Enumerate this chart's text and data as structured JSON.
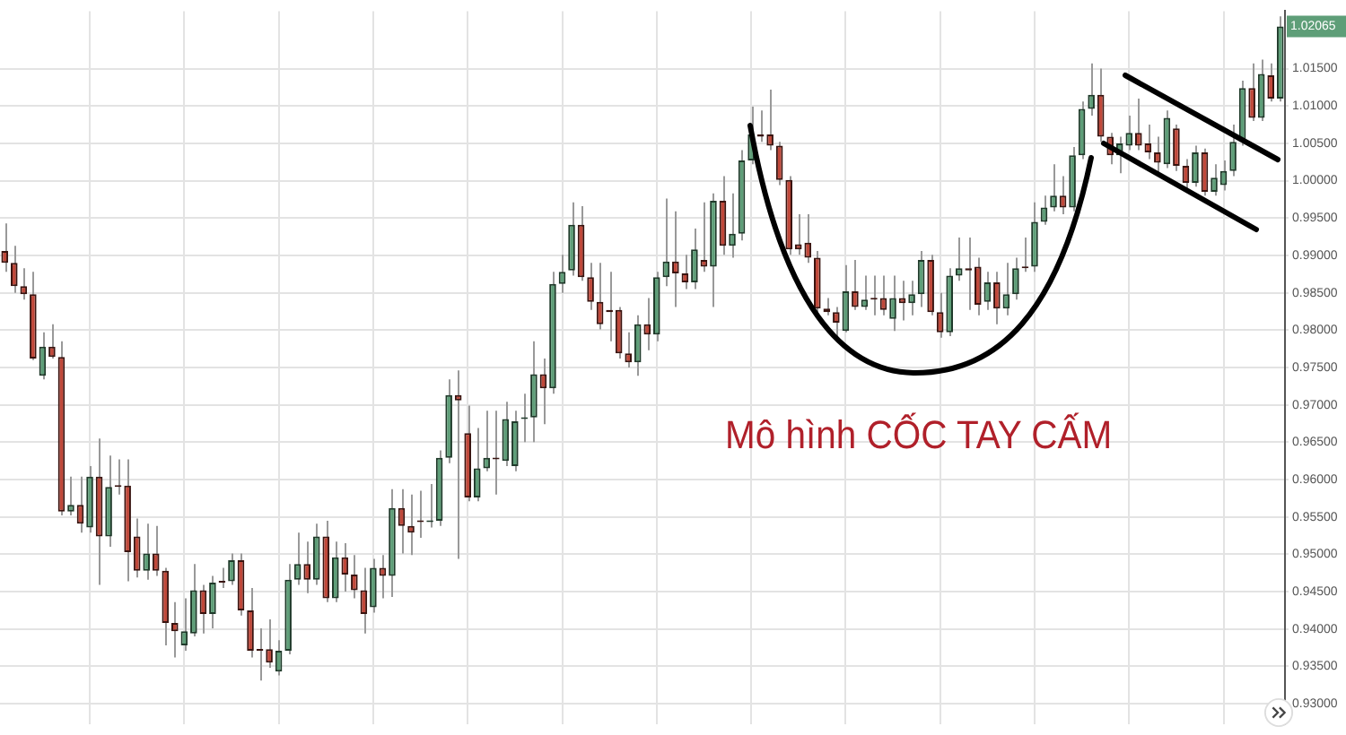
{
  "chart_data": {
    "type": "candlestick",
    "categories": [
      null,
      null,
      null,
      null,
      null,
      null,
      null,
      null,
      null,
      null,
      null,
      null,
      null,
      null,
      null,
      null,
      null,
      null,
      null,
      null,
      null,
      null,
      null,
      null,
      null,
      null,
      null,
      null,
      null,
      null,
      null,
      null,
      null,
      null,
      null,
      null,
      null,
      null,
      null,
      null,
      null,
      null,
      null,
      null,
      null,
      null,
      null,
      null,
      null,
      null,
      null,
      null,
      null,
      null,
      null,
      null,
      null,
      null,
      null,
      null,
      null,
      null,
      null,
      null,
      null,
      null,
      null,
      null,
      null,
      null,
      null,
      null,
      null,
      null,
      null,
      null,
      null,
      null,
      null,
      null,
      null,
      null,
      null,
      null,
      null,
      null,
      null,
      null,
      null,
      null,
      null,
      null,
      null,
      null,
      null,
      null,
      null,
      null,
      null,
      null,
      null,
      null,
      null,
      null,
      null,
      null,
      null,
      null,
      null,
      null,
      null,
      null,
      null,
      null,
      null,
      null,
      null,
      null,
      null,
      null,
      null,
      null,
      null,
      null,
      null,
      null,
      null,
      null,
      null,
      null,
      null,
      null,
      null,
      null,
      null,
      null
    ],
    "ohlc": [
      [
        0.9906,
        0.9943,
        0.9878,
        0.989
      ],
      [
        0.989,
        0.9913,
        0.985,
        0.9859
      ],
      [
        0.9859,
        0.9883,
        0.9841,
        0.9848
      ],
      [
        0.9848,
        0.9878,
        0.976,
        0.9762
      ],
      [
        0.9739,
        0.9797,
        0.9734,
        0.9778
      ],
      [
        0.9778,
        0.9808,
        0.9762,
        0.9764
      ],
      [
        0.9764,
        0.9785,
        0.9552,
        0.9557
      ],
      [
        0.9557,
        0.9604,
        0.9552,
        0.9566
      ],
      [
        0.9566,
        0.9604,
        0.9529,
        0.9541
      ],
      [
        0.9536,
        0.9618,
        0.9529,
        0.9604
      ],
      [
        0.9604,
        0.9655,
        0.9459,
        0.9524
      ],
      [
        0.9524,
        0.9632,
        0.951,
        0.959
      ],
      [
        0.9592,
        0.9627,
        0.958,
        0.959
      ],
      [
        0.9592,
        0.9627,
        0.9464,
        0.9503
      ],
      [
        0.9524,
        0.9548,
        0.9469,
        0.9478
      ],
      [
        0.9478,
        0.9541,
        0.9466,
        0.9501
      ],
      [
        0.9501,
        0.9538,
        0.9471,
        0.9478
      ],
      [
        0.9478,
        0.9482,
        0.9378,
        0.9408
      ],
      [
        0.9408,
        0.9436,
        0.9362,
        0.9397
      ],
      [
        0.9378,
        0.9441,
        0.9371,
        0.9397
      ],
      [
        0.9394,
        0.9487,
        0.939,
        0.9452
      ],
      [
        0.9452,
        0.9459,
        0.9394,
        0.942
      ],
      [
        0.942,
        0.9471,
        0.9401,
        0.9462
      ],
      [
        0.9464,
        0.9482,
        0.9455,
        0.9462
      ],
      [
        0.9464,
        0.9501,
        0.9459,
        0.9492
      ],
      [
        0.9492,
        0.9501,
        0.9418,
        0.9425
      ],
      [
        0.9425,
        0.9455,
        0.9362,
        0.9371
      ],
      [
        0.9373,
        0.9401,
        0.9331,
        0.9371
      ],
      [
        0.9373,
        0.9413,
        0.9348,
        0.9355
      ],
      [
        0.9343,
        0.9385,
        0.9338,
        0.9371
      ],
      [
        0.9371,
        0.9487,
        0.9366,
        0.9466
      ],
      [
        0.9466,
        0.9529,
        0.9459,
        0.9487
      ],
      [
        0.9487,
        0.9517,
        0.9448,
        0.9466
      ],
      [
        0.9466,
        0.9541,
        0.9459,
        0.9524
      ],
      [
        0.9524,
        0.9545,
        0.9436,
        0.9441
      ],
      [
        0.9441,
        0.9517,
        0.9436,
        0.9496
      ],
      [
        0.9496,
        0.9515,
        0.945,
        0.9473
      ],
      [
        0.9473,
        0.9499,
        0.9441,
        0.9452
      ],
      [
        0.9452,
        0.9482,
        0.9394,
        0.942
      ],
      [
        0.9429,
        0.9494,
        0.9422,
        0.9482
      ],
      [
        0.9482,
        0.9499,
        0.9441,
        0.9471
      ],
      [
        0.9471,
        0.9587,
        0.9443,
        0.9562
      ],
      [
        0.9562,
        0.9587,
        0.9501,
        0.9538
      ],
      [
        0.9538,
        0.958,
        0.9499,
        0.9529
      ],
      [
        0.9545,
        0.9585,
        0.9522,
        0.9543
      ],
      [
        0.9543,
        0.9594,
        0.9536,
        0.9545
      ],
      [
        0.9545,
        0.9639,
        0.9538,
        0.9629
      ],
      [
        0.9629,
        0.9734,
        0.9622,
        0.9713
      ],
      [
        0.9713,
        0.9746,
        0.9494,
        0.9706
      ],
      [
        0.9662,
        0.9699,
        0.9571,
        0.9576
      ],
      [
        0.9576,
        0.9669,
        0.9571,
        0.9615
      ],
      [
        0.9615,
        0.9692,
        0.9611,
        0.9629
      ],
      [
        0.9629,
        0.9692,
        0.958,
        0.9627
      ],
      [
        0.9625,
        0.9704,
        0.9618,
        0.9681
      ],
      [
        0.9618,
        0.9692,
        0.9611,
        0.9678
      ],
      [
        0.9681,
        0.9715,
        0.965,
        0.9683
      ],
      [
        0.9683,
        0.9785,
        0.965,
        0.9741
      ],
      [
        0.9741,
        0.9762,
        0.9674,
        0.9722
      ],
      [
        0.9722,
        0.9878,
        0.9715,
        0.9862
      ],
      [
        0.9862,
        0.9901,
        0.985,
        0.9878
      ],
      [
        0.988,
        0.9971,
        0.9873,
        0.9941
      ],
      [
        0.9941,
        0.9966,
        0.9866,
        0.9871
      ],
      [
        0.9871,
        0.989,
        0.9827,
        0.9838
      ],
      [
        0.9838,
        0.989,
        0.9801,
        0.9808
      ],
      [
        0.9827,
        0.9878,
        0.9785,
        0.9824
      ],
      [
        0.9827,
        0.9831,
        0.9762,
        0.9769
      ],
      [
        0.9769,
        0.9797,
        0.975,
        0.9757
      ],
      [
        0.9757,
        0.982,
        0.9739,
        0.9808
      ],
      [
        0.9808,
        0.9843,
        0.9773,
        0.9794
      ],
      [
        0.9794,
        0.9878,
        0.9785,
        0.9871
      ],
      [
        0.9871,
        0.9976,
        0.9859,
        0.9892
      ],
      [
        0.9892,
        0.9959,
        0.9831,
        0.9876
      ],
      [
        0.9876,
        0.9901,
        0.9855,
        0.9864
      ],
      [
        0.9864,
        0.9936,
        0.9855,
        0.9908
      ],
      [
        0.9894,
        0.9971,
        0.9878,
        0.9885
      ],
      [
        0.9885,
        0.9983,
        0.9831,
        0.9973
      ],
      [
        0.9973,
        1.0006,
        0.9901,
        0.9913
      ],
      [
        0.9913,
        0.9983,
        0.9897,
        0.9929
      ],
      [
        0.9929,
        1.0041,
        0.992,
        1.0027
      ],
      [
        1.0027,
        1.0099,
        1.0022,
        1.0062
      ],
      [
        1.0062,
        1.0094,
        1.0052,
        1.0059
      ],
      [
        1.0062,
        1.0122,
        1.0041,
        1.0047
      ],
      [
        1.0047,
        1.0052,
        0.9994,
        1.0001
      ],
      [
        1.0001,
        1.0006,
        0.9901,
        0.9908
      ],
      [
        0.9915,
        0.9955,
        0.9901,
        0.9908
      ],
      [
        0.9917,
        0.9955,
        0.989,
        0.9897
      ],
      [
        0.9897,
        0.9906,
        0.9824,
        0.9829
      ],
      [
        0.9829,
        0.9843,
        0.982,
        0.9824
      ],
      [
        0.9824,
        0.9831,
        0.9792,
        0.981
      ],
      [
        0.9799,
        0.9887,
        0.9797,
        0.9852
      ],
      [
        0.9852,
        0.9894,
        0.9827,
        0.9831
      ],
      [
        0.9831,
        0.9873,
        0.9827,
        0.9841
      ],
      [
        0.9843,
        0.9873,
        0.982,
        0.9841
      ],
      [
        0.9843,
        0.9873,
        0.982,
        0.9827
      ],
      [
        0.9815,
        0.9873,
        0.9799,
        0.9843
      ],
      [
        0.9843,
        0.9866,
        0.9813,
        0.9836
      ],
      [
        0.9836,
        0.9866,
        0.982,
        0.9848
      ],
      [
        0.9848,
        0.9906,
        0.9831,
        0.9894
      ],
      [
        0.9894,
        0.9901,
        0.982,
        0.9824
      ],
      [
        0.9824,
        0.985,
        0.979,
        0.9797
      ],
      [
        0.9797,
        0.9883,
        0.9792,
        0.9873
      ],
      [
        0.9873,
        0.9924,
        0.9866,
        0.9883
      ],
      [
        0.9883,
        0.9924,
        0.9827,
        0.988
      ],
      [
        0.9885,
        0.9897,
        0.982,
        0.9834
      ],
      [
        0.9838,
        0.9878,
        0.9827,
        0.9864
      ],
      [
        0.9864,
        0.9878,
        0.9808,
        0.9829
      ],
      [
        0.9829,
        0.989,
        0.982,
        0.9848
      ],
      [
        0.9848,
        0.9897,
        0.9841,
        0.9883
      ],
      [
        0.9885,
        0.9924,
        0.9878,
        0.9883
      ],
      [
        0.9885,
        0.9971,
        0.9878,
        0.9945
      ],
      [
        0.9945,
        0.998,
        0.9941,
        0.9964
      ],
      [
        0.9964,
        1.0022,
        0.9959,
        0.998
      ],
      [
        0.998,
        1.0006,
        0.9955,
        0.9964
      ],
      [
        0.9964,
        1.0045,
        0.9959,
        1.0034
      ],
      [
        1.0034,
        1.0106,
        1.0029,
        1.0096
      ],
      [
        1.0096,
        1.0157,
        1.0087,
        1.0115
      ],
      [
        1.0115,
        1.015,
        1.0052,
        1.0059
      ],
      [
        1.0059,
        1.0064,
        1.0022,
        1.0034
      ],
      [
        1.0034,
        1.0059,
        1.001,
        1.005
      ],
      [
        1.0047,
        1.0087,
        1.0041,
        1.0064
      ],
      [
        1.0064,
        1.011,
        1.0041,
        1.0047
      ],
      [
        1.005,
        1.0075,
        1.0029,
        1.0038
      ],
      [
        1.0038,
        1.0059,
        1.0006,
        1.0024
      ],
      [
        1.0022,
        1.0094,
        1.0017,
        1.0084
      ],
      [
        1.007,
        1.0075,
        1.0013,
        1.002
      ],
      [
        1.002,
        1.0029,
        0.999,
        0.9997
      ],
      [
        0.9997,
        1.0047,
        0.9992,
        1.0038
      ],
      [
        1.0038,
        1.0043,
        0.998,
        0.9985
      ],
      [
        0.9985,
        1.0022,
        0.998,
        1.0004
      ],
      [
        0.9994,
        1.0027,
        0.9987,
        1.0013
      ],
      [
        1.0013,
        1.0075,
        1.0006,
        1.0052
      ],
      [
        1.0052,
        1.0134,
        1.0047,
        1.0124
      ],
      [
        1.0124,
        1.0157,
        1.008,
        1.0084
      ],
      [
        1.0084,
        1.0162,
        1.008,
        1.0143
      ],
      [
        1.0141,
        1.0157,
        1.0106,
        1.011
      ],
      [
        1.011,
        1.022,
        1.0106,
        1.02065
      ]
    ],
    "ylim": [
      0.9273,
      1.0227
    ],
    "yticks": [
      {
        "value": 0.93,
        "label": "0.93000"
      },
      {
        "value": 0.935,
        "label": "0.93500"
      },
      {
        "value": 0.94,
        "label": "0.94000"
      },
      {
        "value": 0.945,
        "label": "0.94500"
      },
      {
        "value": 0.95,
        "label": "0.95000"
      },
      {
        "value": 0.955,
        "label": "0.95500"
      },
      {
        "value": 0.96,
        "label": "0.96000"
      },
      {
        "value": 0.965,
        "label": "0.96500"
      },
      {
        "value": 0.97,
        "label": "0.97000"
      },
      {
        "value": 0.975,
        "label": "0.97500"
      },
      {
        "value": 0.98,
        "label": "0.98000"
      },
      {
        "value": 0.985,
        "label": "0.98500"
      },
      {
        "value": 0.99,
        "label": "0.99000"
      },
      {
        "value": 0.995,
        "label": "0.99500"
      },
      {
        "value": 1.0,
        "label": "1.00000"
      },
      {
        "value": 1.005,
        "label": "1.00500"
      },
      {
        "value": 1.01,
        "label": "1.01000"
      },
      {
        "value": 1.015,
        "label": "1.01500"
      }
    ],
    "tick_labels": "y",
    "grid": true,
    "legend": false,
    "annotations": [
      "Mô hình CỐC TAY CẤM",
      "1.02065"
    ]
  }
}
